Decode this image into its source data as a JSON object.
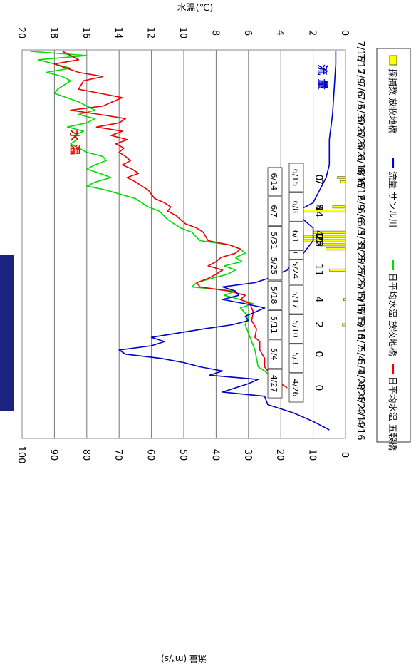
{
  "chart_data": {
    "type": "line",
    "orientation": "rotated 90 degrees clockwise",
    "xlabel": "",
    "y_left_label": "流量 (m³/s)",
    "y_right_label": "水温(℃)",
    "flow_ticks": [
      "0",
      "10",
      "20",
      "30",
      "40",
      "50",
      "60",
      "70",
      "80",
      "90",
      "100"
    ],
    "temp_ticks": [
      "0",
      "2",
      "4",
      "6",
      "8",
      "10",
      "12",
      "14",
      "16",
      "18",
      "20"
    ],
    "flow_ylim": [
      0,
      100
    ],
    "temp_ylim": [
      0,
      20
    ],
    "date_ticks": [
      "4/16",
      "4/19",
      "4/22",
      "4/25",
      "4/28",
      "5/1",
      "5/4",
      "5/7",
      "5/10",
      "5/13",
      "5/16",
      "5/19",
      "5/22",
      "5/25",
      "5/28",
      "5/31",
      "6/3",
      "6/6",
      "6/9",
      "6/12",
      "6/15",
      "6/18",
      "6/21",
      "6/24",
      "6/27",
      "6/30",
      "7/3",
      "7/6",
      "7/9",
      "7/12",
      "7/15"
    ],
    "grid": "horizontal",
    "legend_position": "right",
    "legend": [
      {
        "label": "採捕数 放牧地橋",
        "color": "#ffff00",
        "kind": "bar"
      },
      {
        "label": "流量 サンル川",
        "color": "#0000cc",
        "kind": "line"
      },
      {
        "label": "日平均水温 放牧地橋",
        "color": "#00dd00",
        "kind": "line"
      },
      {
        "label": "日平均水温 五穀橋",
        "color": "#ee0000",
        "kind": "line"
      }
    ],
    "annotations": [
      {
        "text": "水 温",
        "color": "#ee0000"
      },
      {
        "text": "流 量",
        "color": "#0000cc"
      }
    ],
    "catch_count_labels": [
      {
        "date": "4/26",
        "text": "0"
      },
      {
        "date": "5/4",
        "text": "0"
      },
      {
        "date": "5/11",
        "text": "2"
      },
      {
        "date": "5/17",
        "text": "4"
      },
      {
        "date": "5/24",
        "text": "11"
      },
      {
        "date": "5/31",
        "text": "22"
      },
      {
        "date": "5/31",
        "text": "25"
      },
      {
        "date": "6/1",
        "text": "40"
      },
      {
        "date": "6/7",
        "text": "44"
      },
      {
        "date": "6/8",
        "text": "5"
      },
      {
        "date": "6/14",
        "text": "7"
      },
      {
        "date": "6/15",
        "text": "0"
      }
    ],
    "date_boxes": [
      "4/26",
      "4/27",
      "5/3",
      "5/4",
      "5/10",
      "5/11",
      "5/17",
      "5/18",
      "5/24",
      "5/25",
      "5/30",
      "5/31",
      "6/1",
      "6/7",
      "6/8",
      "6/14",
      "6/15"
    ],
    "flow_series": [
      [
        "4/16",
        5
      ],
      [
        "4/18",
        10
      ],
      [
        "4/20",
        16
      ],
      [
        "4/22",
        24
      ],
      [
        "4/24",
        25
      ],
      [
        "4/25",
        38
      ],
      [
        "4/27",
        30
      ],
      [
        "4/28",
        27
      ],
      [
        "4/29",
        42
      ],
      [
        "4/30",
        38
      ],
      [
        "5/1",
        45
      ],
      [
        "5/2",
        50
      ],
      [
        "5/3",
        57
      ],
      [
        "5/4",
        68
      ],
      [
        "5/5",
        70
      ],
      [
        "5/6",
        60
      ],
      [
        "5/7",
        56
      ],
      [
        "5/8",
        60
      ],
      [
        "5/9",
        52
      ],
      [
        "5/10",
        44
      ],
      [
        "5/11",
        35
      ],
      [
        "5/12",
        30
      ],
      [
        "5/13",
        31
      ],
      [
        "5/14",
        28
      ],
      [
        "5/15",
        25
      ],
      [
        "5/16",
        31
      ],
      [
        "5/17",
        38
      ],
      [
        "5/18",
        33
      ],
      [
        "5/19",
        34
      ],
      [
        "5/20",
        38
      ],
      [
        "5/21",
        28
      ],
      [
        "5/22",
        24
      ],
      [
        "5/23",
        21
      ],
      [
        "5/24",
        18
      ],
      [
        "5/25",
        17
      ],
      [
        "5/26",
        15
      ],
      [
        "5/27",
        14
      ],
      [
        "5/28",
        13
      ],
      [
        "5/29",
        12
      ],
      [
        "5/30",
        11
      ],
      [
        "5/31",
        10
      ],
      [
        "6/3",
        10
      ],
      [
        "6/5",
        13
      ],
      [
        "6/7",
        15
      ],
      [
        "6/9",
        10
      ],
      [
        "6/12",
        8
      ],
      [
        "6/15",
        6
      ],
      [
        "6/18",
        5
      ],
      [
        "6/24",
        5
      ],
      [
        "6/30",
        4
      ],
      [
        "7/6",
        3.5
      ],
      [
        "7/12",
        3
      ],
      [
        "7/15",
        3
      ]
    ],
    "temp_gokoku_series": [
      [
        "4/26",
        3.6
      ],
      [
        "4/27",
        4.0
      ],
      [
        "4/28",
        4.3
      ],
      [
        "4/29",
        4.5
      ],
      [
        "4/30",
        4.8
      ],
      [
        "5/1",
        5.0
      ],
      [
        "5/3",
        5.0
      ],
      [
        "5/5",
        5.3
      ],
      [
        "5/7",
        5.3
      ],
      [
        "5/8",
        5.6
      ],
      [
        "5/10",
        5.5
      ],
      [
        "5/12",
        5.8
      ],
      [
        "5/14",
        5.7
      ],
      [
        "5/16",
        5.9
      ],
      [
        "5/17",
        6.5
      ],
      [
        "5/18",
        6.2
      ],
      [
        "5/19",
        7.2
      ],
      [
        "5/20",
        9.0
      ],
      [
        "5/21",
        9.2
      ],
      [
        "5/22",
        8.5
      ],
      [
        "5/23",
        8.0
      ],
      [
        "5/24",
        7.6
      ],
      [
        "5/25",
        8.5
      ],
      [
        "5/26",
        8.0
      ],
      [
        "5/27",
        7.7
      ],
      [
        "5/28",
        6.8
      ],
      [
        "5/29",
        6.5
      ],
      [
        "5/30",
        7.2
      ],
      [
        "5/31",
        8.5
      ],
      [
        "6/2",
        8.8
      ],
      [
        "6/3",
        9.2
      ],
      [
        "6/4",
        9.9
      ],
      [
        "6/5",
        10.2
      ],
      [
        "6/6",
        10.5
      ],
      [
        "6/7",
        11.0
      ],
      [
        "6/8",
        10.8
      ],
      [
        "6/9",
        11.2
      ],
      [
        "6/10",
        11.8
      ],
      [
        "6/12",
        12.2
      ],
      [
        "6/14",
        13.0
      ],
      [
        "6/15",
        13.5
      ],
      [
        "6/16",
        12.8
      ],
      [
        "6/17",
        13.2
      ],
      [
        "6/18",
        13.8
      ],
      [
        "6/19",
        13.3
      ],
      [
        "6/20",
        13.6
      ],
      [
        "6/21",
        14.0
      ],
      [
        "6/22",
        13.7
      ],
      [
        "6/23",
        14.2
      ],
      [
        "6/24",
        13.5
      ],
      [
        "6/25",
        14.5
      ],
      [
        "6/26",
        13.8
      ],
      [
        "6/27",
        15.4
      ],
      [
        "6/28",
        14.0
      ],
      [
        "6/29",
        13.6
      ],
      [
        "6/30",
        15.2
      ],
      [
        "7/1",
        17.0
      ],
      [
        "7/2",
        15.0
      ],
      [
        "7/4",
        13.8
      ],
      [
        "7/6",
        16.5
      ],
      [
        "7/8",
        16.2
      ],
      [
        "7/9",
        15.0
      ],
      [
        "7/10",
        16.5
      ],
      [
        "7/12",
        18.0
      ],
      [
        "7/13",
        16.5
      ],
      [
        "7/15",
        17.5
      ]
    ],
    "temp_bokuchi_series": [
      [
        "4/27",
        4.0
      ],
      [
        "4/28",
        4.4
      ],
      [
        "4/29",
        4.7
      ],
      [
        "4/30",
        5.0
      ],
      [
        "5/1",
        5.4
      ],
      [
        "5/3",
        5.5
      ],
      [
        "5/5",
        5.6
      ],
      [
        "5/7",
        5.8
      ],
      [
        "5/9",
        6.0
      ],
      [
        "5/11",
        6.2
      ],
      [
        "5/13",
        6.0
      ],
      [
        "5/15",
        6.5
      ],
      [
        "5/16",
        5.7
      ],
      [
        "5/17",
        6.5
      ],
      [
        "5/18",
        7.5
      ],
      [
        "5/19",
        6.8
      ],
      [
        "5/20",
        9.5
      ],
      [
        "5/21",
        9.2
      ],
      [
        "5/22",
        8.3
      ],
      [
        "5/23",
        7.3
      ],
      [
        "5/24",
        6.8
      ],
      [
        "5/25",
        7.5
      ],
      [
        "5/26",
        6.4
      ],
      [
        "5/27",
        6.8
      ],
      [
        "5/28",
        6.2
      ],
      [
        "5/29",
        6.5
      ],
      [
        "5/30",
        7.2
      ],
      [
        "5/31",
        9.0
      ],
      [
        "6/2",
        9.5
      ],
      [
        "6/3",
        10.2
      ],
      [
        "6/5",
        11.0
      ],
      [
        "6/7",
        11.5
      ],
      [
        "6/8",
        12.2
      ],
      [
        "6/10",
        13.0
      ],
      [
        "6/12",
        14.8
      ],
      [
        "6/13",
        16.0
      ],
      [
        "6/14",
        15.4
      ],
      [
        "6/15",
        14.5
      ],
      [
        "6/16",
        15.2
      ],
      [
        "6/17",
        16.0
      ],
      [
        "6/18",
        15.5
      ],
      [
        "6/19",
        14.8
      ],
      [
        "6/20",
        15.0
      ],
      [
        "6/21",
        16.0
      ],
      [
        "6/22",
        16.5
      ],
      [
        "6/23",
        17.0
      ],
      [
        "6/24",
        16.6
      ],
      [
        "6/25",
        16.8
      ],
      [
        "6/26",
        16.2
      ],
      [
        "6/27",
        17.2
      ],
      [
        "6/28",
        16.0
      ],
      [
        "6/29",
        15.5
      ],
      [
        "6/30",
        16.5
      ],
      [
        "7/1",
        15.5
      ],
      [
        "7/3",
        16.5
      ],
      [
        "7/5",
        18.0
      ],
      [
        "7/6",
        17.8
      ],
      [
        "7/8",
        17.0
      ],
      [
        "7/9",
        17.5
      ],
      [
        "7/10",
        18.5
      ],
      [
        "7/11",
        17.0
      ],
      [
        "7/13",
        19.0
      ],
      [
        "7/14",
        16.0
      ],
      [
        "7/15",
        19.5
      ]
    ],
    "catch_bars": [
      [
        "5/11",
        1
      ],
      [
        "5/17",
        0.6
      ],
      [
        "5/24",
        5
      ],
      [
        "5/29",
        6
      ],
      [
        "5/30",
        8
      ],
      [
        "5/31",
        14
      ],
      [
        "6/1",
        14
      ],
      [
        "6/2",
        10
      ],
      [
        "6/7",
        16
      ],
      [
        "6/8",
        4
      ],
      [
        "6/14",
        1.5
      ],
      [
        "6/15",
        2.5
      ]
    ]
  }
}
